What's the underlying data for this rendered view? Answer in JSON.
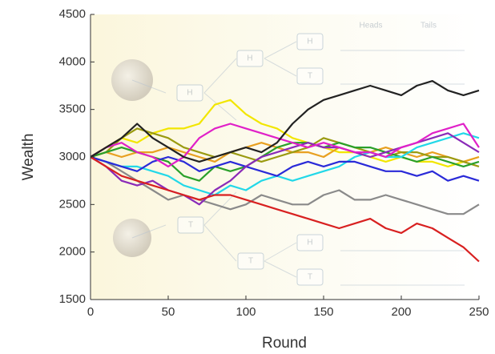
{
  "chart_data": {
    "type": "line",
    "x_label": "Round",
    "y_label": "Wealth",
    "x": [
      0,
      10,
      20,
      30,
      40,
      50,
      60,
      70,
      80,
      90,
      100,
      110,
      120,
      130,
      140,
      150,
      160,
      170,
      180,
      190,
      200,
      210,
      220,
      230,
      240,
      250
    ],
    "xlim": [
      0,
      250
    ],
    "xticks": [
      0,
      50,
      100,
      150,
      200,
      250
    ],
    "ylim": [
      1500,
      4500
    ],
    "yticks": [
      1500,
      2000,
      2500,
      3000,
      3500,
      4000,
      4500
    ],
    "grid": false,
    "annotations": [
      "Heads",
      "Tails",
      "H",
      "H",
      "H",
      "T",
      "T",
      "T",
      "H",
      "T"
    ],
    "series": [
      {
        "color": "#f2e600",
        "values": [
          3000,
          3100,
          3200,
          3150,
          3250,
          3300,
          3300,
          3350,
          3550,
          3600,
          3450,
          3350,
          3300,
          3200,
          3150,
          3100,
          3050,
          3050,
          3000,
          2950,
          3000,
          2950,
          2950,
          2900,
          2950,
          3000
        ]
      },
      {
        "color": "#8a8a8a",
        "values": [
          3000,
          2950,
          2850,
          2750,
          2650,
          2550,
          2600,
          2550,
          2500,
          2450,
          2500,
          2600,
          2550,
          2500,
          2500,
          2600,
          2650,
          2550,
          2550,
          2600,
          2550,
          2500,
          2450,
          2400,
          2400,
          2500
        ]
      },
      {
        "color": "#e8a020",
        "values": [
          3000,
          3050,
          3000,
          3050,
          3050,
          3100,
          3050,
          3000,
          2950,
          3050,
          3100,
          3150,
          3100,
          3050,
          3050,
          3000,
          3100,
          3050,
          3050,
          3100,
          3050,
          3000,
          3050,
          3000,
          2950,
          3000
        ]
      },
      {
        "color": "#9a9a10",
        "values": [
          3000,
          3050,
          3200,
          3300,
          3250,
          3200,
          3100,
          3050,
          3000,
          3050,
          3000,
          2950,
          3000,
          3050,
          3100,
          3200,
          3150,
          3100,
          3050,
          3000,
          3050,
          3050,
          3000,
          3000,
          2950,
          2900
        ]
      },
      {
        "color": "#2aa02a",
        "values": [
          3000,
          3050,
          3100,
          3050,
          3000,
          2950,
          2800,
          2750,
          2900,
          2850,
          2900,
          3000,
          3100,
          3150,
          3150,
          3100,
          3150,
          3100,
          3100,
          3050,
          3000,
          2950,
          3000,
          2950,
          2900,
          2950
        ]
      },
      {
        "color": "#22d8e8",
        "values": [
          3000,
          2950,
          2900,
          2900,
          2850,
          2800,
          2700,
          2650,
          2600,
          2700,
          2650,
          2750,
          2800,
          2750,
          2800,
          2850,
          2900,
          3000,
          3050,
          3000,
          3000,
          3100,
          3150,
          3200,
          3250,
          3200
        ]
      },
      {
        "color": "#2a2ad8",
        "values": [
          3000,
          2950,
          2900,
          2850,
          2950,
          3000,
          2950,
          2850,
          2900,
          2950,
          2900,
          2850,
          2800,
          2900,
          2950,
          2900,
          2950,
          2950,
          2900,
          2850,
          2850,
          2800,
          2850,
          2750,
          2800,
          2750
        ]
      },
      {
        "color": "#8a2ab8",
        "values": [
          3000,
          2900,
          2750,
          2700,
          2750,
          2650,
          2600,
          2500,
          2650,
          2750,
          2900,
          3000,
          3050,
          3100,
          3150,
          3100,
          3100,
          3050,
          3000,
          3050,
          3100,
          3150,
          3200,
          3250,
          3150,
          3050
        ]
      },
      {
        "color": "#e020c8",
        "values": [
          3000,
          3100,
          3150,
          3050,
          3000,
          2900,
          3000,
          3200,
          3300,
          3350,
          3300,
          3250,
          3200,
          3150,
          3100,
          3150,
          3100,
          3050,
          3050,
          3000,
          3100,
          3150,
          3250,
          3300,
          3350,
          3100
        ]
      },
      {
        "color": "#d82020",
        "values": [
          3000,
          2900,
          2800,
          2750,
          2700,
          2650,
          2600,
          2550,
          2600,
          2600,
          2550,
          2500,
          2450,
          2400,
          2350,
          2300,
          2250,
          2300,
          2350,
          2250,
          2200,
          2300,
          2250,
          2150,
          2050,
          1900
        ]
      },
      {
        "color": "#222222",
        "values": [
          3000,
          3100,
          3200,
          3350,
          3200,
          3100,
          3000,
          2950,
          3000,
          3050,
          3100,
          3050,
          3150,
          3350,
          3500,
          3600,
          3650,
          3700,
          3750,
          3700,
          3650,
          3750,
          3800,
          3700,
          3650,
          3700
        ]
      }
    ]
  }
}
